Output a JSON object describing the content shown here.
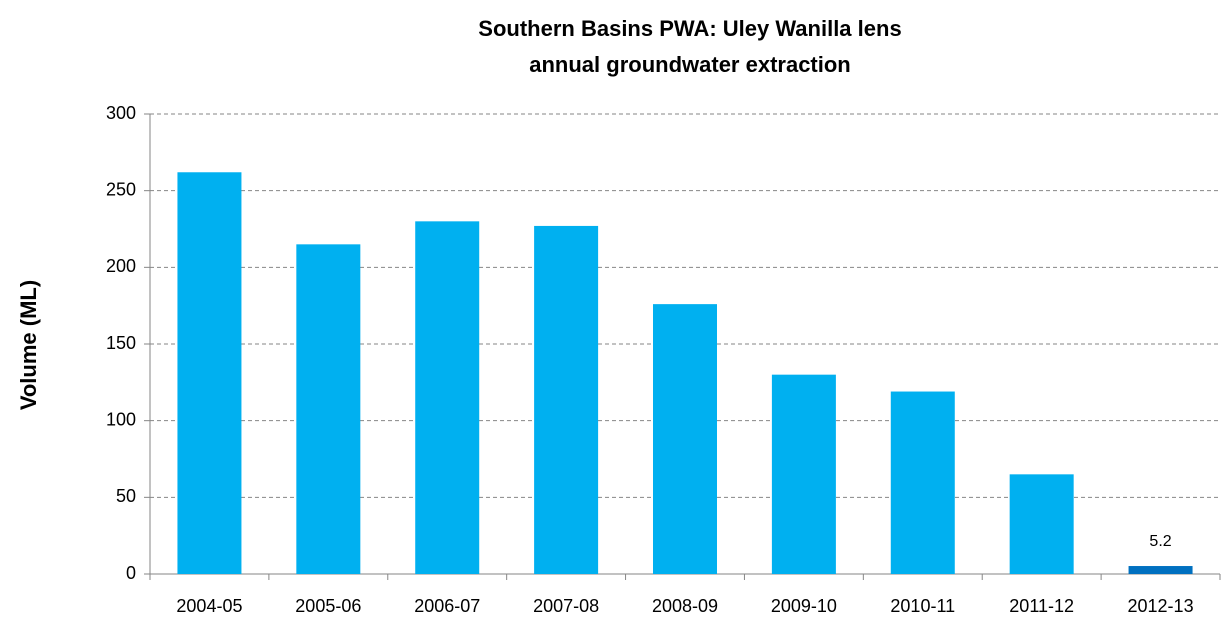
{
  "chart_data": {
    "type": "bar",
    "title": [
      "Southern Basins PWA: Uley Wanilla lens",
      "annual groundwater extraction"
    ],
    "y_label": "Volume (ML)",
    "categories": [
      "2004-05",
      "2005-06",
      "2006-07",
      "2007-08",
      "2008-09",
      "2009-10",
      "2010-11",
      "2011-12",
      "2012-13"
    ],
    "values": [
      262,
      215,
      230,
      227,
      176,
      130,
      119,
      65,
      5.2
    ],
    "value_labels": [
      null,
      null,
      null,
      null,
      null,
      null,
      null,
      null,
      "5.2"
    ],
    "colors": [
      "#00b0f0",
      "#00b0f0",
      "#00b0f0",
      "#00b0f0",
      "#00b0f0",
      "#00b0f0",
      "#00b0f0",
      "#00b0f0",
      "#0070c0"
    ],
    "ylim": [
      0,
      300
    ],
    "yticks": [
      0,
      50,
      100,
      150,
      200,
      250,
      300
    ],
    "grid": true
  }
}
